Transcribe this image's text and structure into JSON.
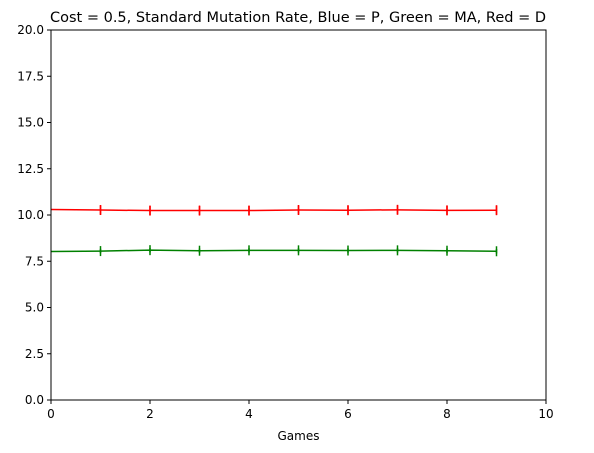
{
  "chart_data": {
    "type": "line",
    "title": "Cost = 0.5, Standard Mutation Rate, Blue = P, Green = MA, Red = D",
    "xlabel": "Games",
    "ylabel": "",
    "xlim": [
      0,
      10
    ],
    "ylim": [
      0,
      20
    ],
    "xticks": [
      0,
      2,
      4,
      6,
      8,
      10
    ],
    "xtick_labels": [
      "0",
      "2",
      "4",
      "6",
      "8",
      "10"
    ],
    "yticks": [
      0,
      2.5,
      5,
      7.5,
      10,
      12.5,
      15,
      17.5,
      20
    ],
    "ytick_labels": [
      "0.0",
      "2.5",
      "5.0",
      "7.5",
      "10.0",
      "12.5",
      "15.0",
      "17.5",
      "20.0"
    ],
    "grid": false,
    "x": [
      0,
      1,
      2,
      3,
      4,
      5,
      6,
      7,
      8,
      9
    ],
    "series": [
      {
        "color": "#ff0000",
        "values": [
          10.3,
          10.27,
          10.24,
          10.24,
          10.24,
          10.27,
          10.26,
          10.28,
          10.25,
          10.26
        ],
        "error": [
          0.0,
          0.25,
          0.25,
          0.25,
          0.25,
          0.25,
          0.25,
          0.25,
          0.25,
          0.25
        ]
      },
      {
        "color": "#008000",
        "values": [
          8.03,
          8.05,
          8.1,
          8.07,
          8.09,
          8.09,
          8.08,
          8.09,
          8.07,
          8.04
        ],
        "error": [
          0.0,
          0.12,
          0.12,
          0.12,
          0.12,
          0.12,
          0.12,
          0.12,
          0.12,
          0.12
        ]
      }
    ]
  }
}
